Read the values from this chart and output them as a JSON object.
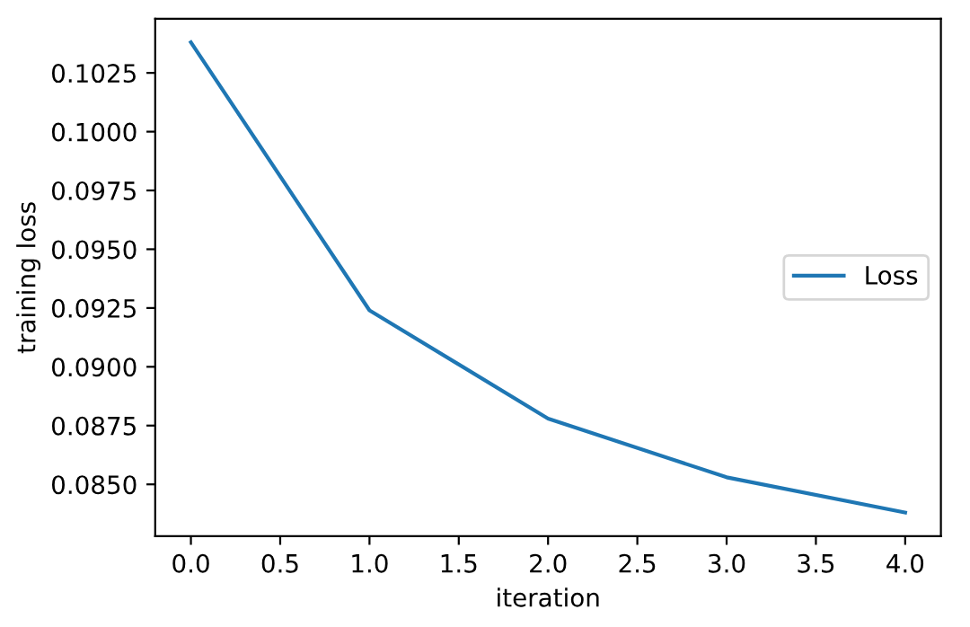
{
  "chart_data": {
    "type": "line",
    "xlabel": "iteration",
    "ylabel": "training loss",
    "x": [
      0,
      1,
      2,
      3,
      4
    ],
    "series": [
      {
        "name": "Loss",
        "color": "#1f77b4",
        "values": [
          0.1038,
          0.0924,
          0.0878,
          0.0853,
          0.0838
        ]
      }
    ],
    "xlim": [
      -0.2,
      4.2
    ],
    "xticks": [
      {
        "value": 0,
        "label": "0.0"
      },
      0.5,
      {
        "value": 1,
        "label": "1.0"
      },
      1.5,
      {
        "value": 2,
        "label": "2.0"
      },
      2.5,
      {
        "value": 3,
        "label": "3.0"
      },
      3.5,
      {
        "value": 4,
        "label": "4.0"
      }
    ],
    "ylim": [
      0.0828,
      0.1048
    ],
    "yticks": [
      {
        "value": 0.085,
        "label": "0.0850"
      },
      0.0875,
      {
        "value": 0.09,
        "label": "0.0900"
      },
      0.0925,
      {
        "value": 0.095,
        "label": "0.0950"
      },
      0.0975,
      {
        "value": 0.1,
        "label": "0.1000"
      },
      0.1025
    ],
    "legend": "center right",
    "grid": false
  }
}
